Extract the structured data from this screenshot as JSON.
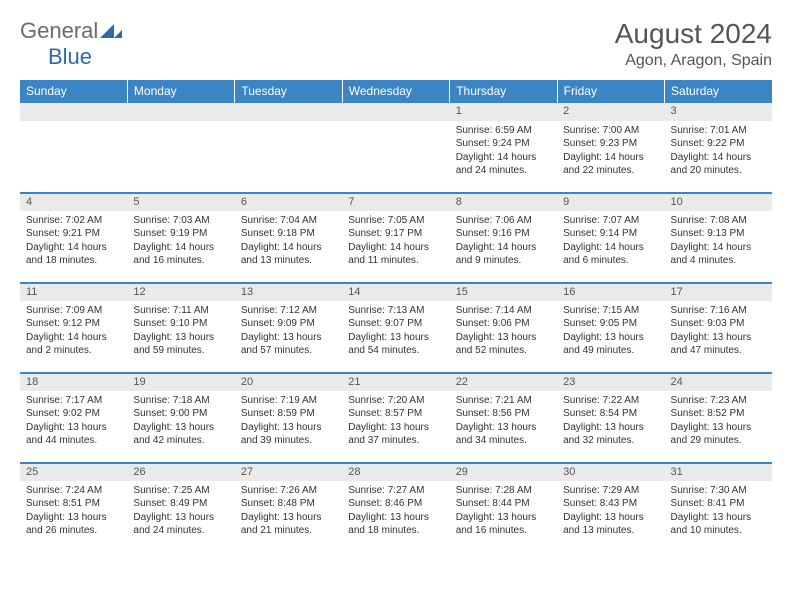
{
  "brand": {
    "general": "General",
    "blue": "Blue"
  },
  "title": "August 2024",
  "location": "Agon, Aragon, Spain",
  "colors": {
    "header_bg": "#3c85c4",
    "header_text": "#ffffff",
    "daynum_bg": "#eaeaea",
    "rule": "#3c85c4",
    "text": "#333333",
    "logo_gray": "#6b6b6b",
    "logo_blue": "#2f6aa8"
  },
  "typography": {
    "month_title_size_pt": 21,
    "location_size_pt": 12,
    "weekday_size_pt": 9,
    "daynum_size_pt": 8,
    "detail_size_pt": 7.5
  },
  "weekdays": [
    "Sunday",
    "Monday",
    "Tuesday",
    "Wednesday",
    "Thursday",
    "Friday",
    "Saturday"
  ],
  "weeks": [
    [
      null,
      null,
      null,
      null,
      {
        "n": "1",
        "sr": "6:59 AM",
        "ss": "9:24 PM",
        "dl": "14 hours and 24 minutes."
      },
      {
        "n": "2",
        "sr": "7:00 AM",
        "ss": "9:23 PM",
        "dl": "14 hours and 22 minutes."
      },
      {
        "n": "3",
        "sr": "7:01 AM",
        "ss": "9:22 PM",
        "dl": "14 hours and 20 minutes."
      }
    ],
    [
      {
        "n": "4",
        "sr": "7:02 AM",
        "ss": "9:21 PM",
        "dl": "14 hours and 18 minutes."
      },
      {
        "n": "5",
        "sr": "7:03 AM",
        "ss": "9:19 PM",
        "dl": "14 hours and 16 minutes."
      },
      {
        "n": "6",
        "sr": "7:04 AM",
        "ss": "9:18 PM",
        "dl": "14 hours and 13 minutes."
      },
      {
        "n": "7",
        "sr": "7:05 AM",
        "ss": "9:17 PM",
        "dl": "14 hours and 11 minutes."
      },
      {
        "n": "8",
        "sr": "7:06 AM",
        "ss": "9:16 PM",
        "dl": "14 hours and 9 minutes."
      },
      {
        "n": "9",
        "sr": "7:07 AM",
        "ss": "9:14 PM",
        "dl": "14 hours and 6 minutes."
      },
      {
        "n": "10",
        "sr": "7:08 AM",
        "ss": "9:13 PM",
        "dl": "14 hours and 4 minutes."
      }
    ],
    [
      {
        "n": "11",
        "sr": "7:09 AM",
        "ss": "9:12 PM",
        "dl": "14 hours and 2 minutes."
      },
      {
        "n": "12",
        "sr": "7:11 AM",
        "ss": "9:10 PM",
        "dl": "13 hours and 59 minutes."
      },
      {
        "n": "13",
        "sr": "7:12 AM",
        "ss": "9:09 PM",
        "dl": "13 hours and 57 minutes."
      },
      {
        "n": "14",
        "sr": "7:13 AM",
        "ss": "9:07 PM",
        "dl": "13 hours and 54 minutes."
      },
      {
        "n": "15",
        "sr": "7:14 AM",
        "ss": "9:06 PM",
        "dl": "13 hours and 52 minutes."
      },
      {
        "n": "16",
        "sr": "7:15 AM",
        "ss": "9:05 PM",
        "dl": "13 hours and 49 minutes."
      },
      {
        "n": "17",
        "sr": "7:16 AM",
        "ss": "9:03 PM",
        "dl": "13 hours and 47 minutes."
      }
    ],
    [
      {
        "n": "18",
        "sr": "7:17 AM",
        "ss": "9:02 PM",
        "dl": "13 hours and 44 minutes."
      },
      {
        "n": "19",
        "sr": "7:18 AM",
        "ss": "9:00 PM",
        "dl": "13 hours and 42 minutes."
      },
      {
        "n": "20",
        "sr": "7:19 AM",
        "ss": "8:59 PM",
        "dl": "13 hours and 39 minutes."
      },
      {
        "n": "21",
        "sr": "7:20 AM",
        "ss": "8:57 PM",
        "dl": "13 hours and 37 minutes."
      },
      {
        "n": "22",
        "sr": "7:21 AM",
        "ss": "8:56 PM",
        "dl": "13 hours and 34 minutes."
      },
      {
        "n": "23",
        "sr": "7:22 AM",
        "ss": "8:54 PM",
        "dl": "13 hours and 32 minutes."
      },
      {
        "n": "24",
        "sr": "7:23 AM",
        "ss": "8:52 PM",
        "dl": "13 hours and 29 minutes."
      }
    ],
    [
      {
        "n": "25",
        "sr": "7:24 AM",
        "ss": "8:51 PM",
        "dl": "13 hours and 26 minutes."
      },
      {
        "n": "26",
        "sr": "7:25 AM",
        "ss": "8:49 PM",
        "dl": "13 hours and 24 minutes."
      },
      {
        "n": "27",
        "sr": "7:26 AM",
        "ss": "8:48 PM",
        "dl": "13 hours and 21 minutes."
      },
      {
        "n": "28",
        "sr": "7:27 AM",
        "ss": "8:46 PM",
        "dl": "13 hours and 18 minutes."
      },
      {
        "n": "29",
        "sr": "7:28 AM",
        "ss": "8:44 PM",
        "dl": "13 hours and 16 minutes."
      },
      {
        "n": "30",
        "sr": "7:29 AM",
        "ss": "8:43 PM",
        "dl": "13 hours and 13 minutes."
      },
      {
        "n": "31",
        "sr": "7:30 AM",
        "ss": "8:41 PM",
        "dl": "13 hours and 10 minutes."
      }
    ]
  ],
  "labels": {
    "sunrise": "Sunrise:",
    "sunset": "Sunset:",
    "daylight": "Daylight:"
  }
}
